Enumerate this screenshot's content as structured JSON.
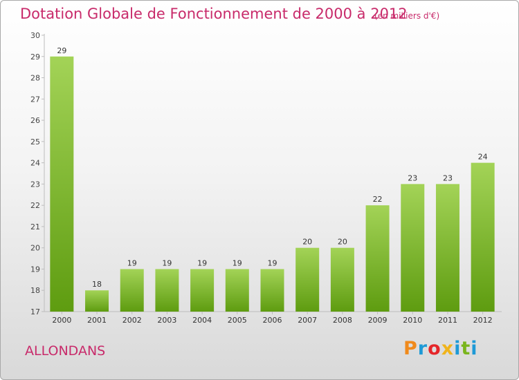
{
  "header": {
    "title": "Dotation Globale de Fonctionnement de 2000 à 2012",
    "unit": "(en milliers d'€)"
  },
  "commune": "ALLONDANS",
  "brand": {
    "name": "Proxiti",
    "letter_colors": [
      "#f08a1c",
      "#1e9ad6",
      "#e5262a",
      "#f0b41c",
      "#1e9ad6",
      "#7ab51d",
      "#1e9ad6"
    ]
  },
  "colors": {
    "title": "#c82a6a",
    "bar_light": "#a3d357",
    "bar_dark": "#5e9c10",
    "axis": "#bdbdbd"
  },
  "chart_data": {
    "type": "bar",
    "categories": [
      "2000",
      "2001",
      "2002",
      "2003",
      "2004",
      "2005",
      "2006",
      "2007",
      "2008",
      "2009",
      "2010",
      "2011",
      "2012"
    ],
    "values": [
      29,
      18,
      19,
      19,
      19,
      19,
      19,
      20,
      20,
      22,
      23,
      23,
      24
    ],
    "ylim": [
      17,
      30
    ],
    "yticks": [
      17,
      18,
      19,
      20,
      21,
      22,
      23,
      24,
      25,
      26,
      27,
      28,
      29,
      30
    ],
    "grid": false,
    "title": "Dotation Globale de Fonctionnement de 2000 à 2012",
    "xlabel": "",
    "ylabel": ""
  }
}
